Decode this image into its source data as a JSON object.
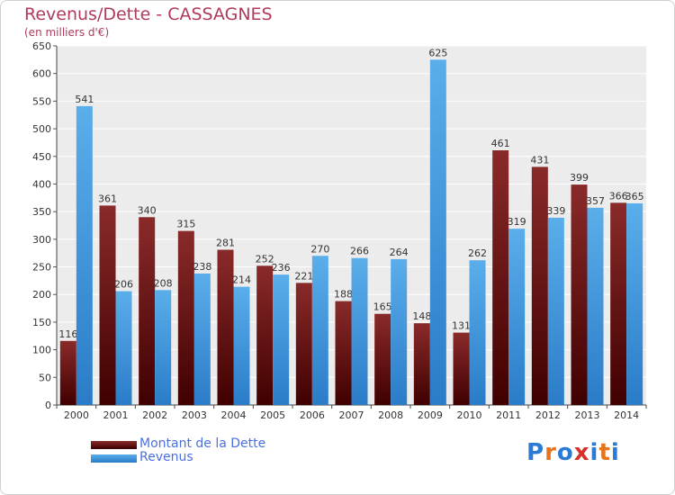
{
  "chart_data": {
    "type": "bar",
    "title": "Revenus/Dette - CASSAGNES",
    "subtitle": "(en milliers d'€)",
    "categories": [
      "2000",
      "2001",
      "2002",
      "2003",
      "2004",
      "2005",
      "2006",
      "2007",
      "2008",
      "2009",
      "2010",
      "2011",
      "2012",
      "2013",
      "2014"
    ],
    "series": [
      {
        "name": "Montant de la Dette",
        "color": "#6e1414",
        "values": [
          116,
          361,
          340,
          315,
          281,
          252,
          221,
          188,
          165,
          148,
          131,
          461,
          431,
          399,
          366
        ]
      },
      {
        "name": "Revenus",
        "color": "#3a93d8",
        "values": [
          541,
          206,
          208,
          238,
          214,
          236,
          270,
          266,
          264,
          625,
          262,
          319,
          339,
          357,
          365
        ]
      }
    ],
    "ylim": [
      0,
      650
    ],
    "yticks": [
      0,
      50,
      100,
      150,
      200,
      250,
      300,
      350,
      400,
      450,
      500,
      550,
      600,
      650
    ],
    "grid": true,
    "legend": "bottom-left"
  },
  "logo": {
    "text": "Proxiti",
    "letters": [
      "P",
      "r",
      "o",
      "x",
      "i",
      "t",
      "i"
    ],
    "colors": [
      "#2b7bd6",
      "#e8731a",
      "#2b7bd6",
      "#d6322b",
      "#2b7bd6",
      "#e8731a",
      "#2b7bd6"
    ]
  }
}
